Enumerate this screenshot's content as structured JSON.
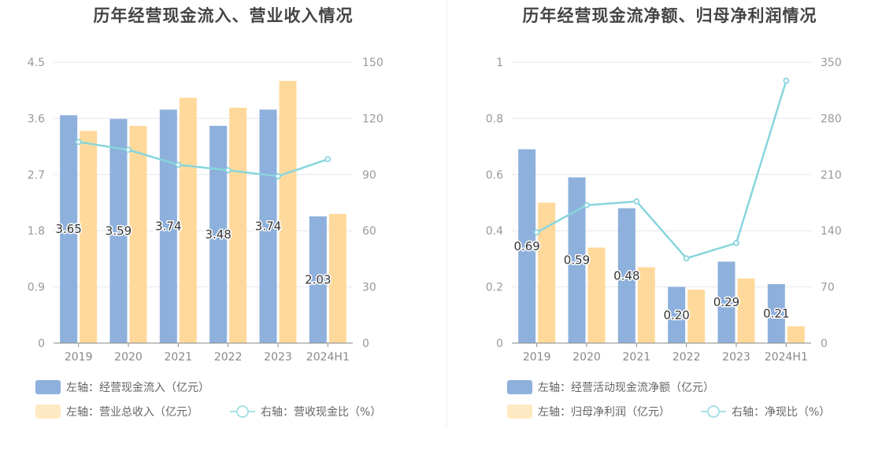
{
  "chart_data": [
    {
      "type": "bar",
      "title": "历年经营现金流入、营业收入情况",
      "categories": [
        "2019",
        "2020",
        "2021",
        "2022",
        "2023",
        "2024H1"
      ],
      "y_left": {
        "min": 0,
        "max": 4.5,
        "ticks": [
          "0",
          "0.9",
          "1.8",
          "2.7",
          "3.6",
          "4.5"
        ]
      },
      "y_right": {
        "min": 0,
        "max": 150,
        "ticks": [
          "0",
          "30",
          "60",
          "90",
          "120",
          "150"
        ]
      },
      "series": [
        {
          "name": "左轴：经营现金流入（亿元）",
          "axis": "left",
          "kind": "bar",
          "color": "#8eb0dc",
          "values": [
            3.65,
            3.59,
            3.74,
            3.48,
            3.74,
            2.03
          ],
          "labels": [
            "3.65",
            "3.59",
            "3.74",
            "3.48",
            "3.74",
            "2.03"
          ]
        },
        {
          "name": "左轴：营业总收入（亿元）",
          "axis": "left",
          "kind": "bar",
          "color": "#ffd99b",
          "values": [
            3.4,
            3.48,
            3.93,
            3.77,
            4.2,
            2.07
          ]
        },
        {
          "name": "右轴：营收现金比（%）",
          "axis": "right",
          "kind": "line",
          "color": "#88d5dd",
          "values": [
            107.4,
            103.2,
            95.2,
            92.3,
            89.1,
            98.2
          ]
        }
      ]
    },
    {
      "type": "bar",
      "title": "历年经营现金流净额、归母净利润情况",
      "categories": [
        "2019",
        "2020",
        "2021",
        "2022",
        "2023",
        "2024H1"
      ],
      "y_left": {
        "min": 0,
        "max": 1,
        "ticks": [
          "0",
          "0.2",
          "0.4",
          "0.6",
          "0.8",
          "1"
        ]
      },
      "y_right": {
        "min": 0,
        "max": 350,
        "ticks": [
          "0",
          "70",
          "140",
          "210",
          "280",
          "350"
        ]
      },
      "series": [
        {
          "name": "左轴：经营活动现金流净额（亿元）",
          "axis": "left",
          "kind": "bar",
          "color": "#8eb0dc",
          "values": [
            0.69,
            0.59,
            0.48,
            0.2,
            0.29,
            0.21
          ],
          "labels": [
            "0.69",
            "0.59",
            "0.48",
            "0.20",
            "0.29",
            "0.21"
          ]
        },
        {
          "name": "左轴：归母净利润（亿元）",
          "axis": "left",
          "kind": "bar",
          "color": "#ffd99b",
          "values": [
            0.5,
            0.34,
            0.27,
            0.19,
            0.23,
            0.06
          ]
        },
        {
          "name": "右轴：净现比（%）",
          "axis": "right",
          "kind": "line",
          "color": "#88d5dd",
          "values": [
            138,
            171.8,
            176.5,
            105.6,
            124.6,
            326.8
          ]
        }
      ]
    }
  ]
}
